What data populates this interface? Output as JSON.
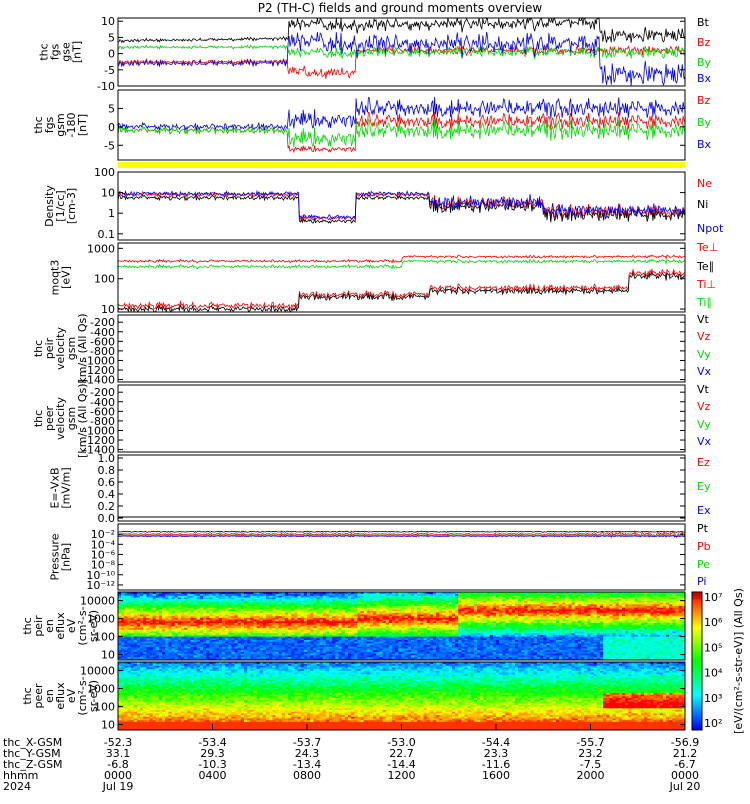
{
  "page": {
    "title": "P2 (TH-C) fields and ground moments overview"
  },
  "colors": {
    "black": "#000000",
    "red": "#ff0000",
    "green": "#00dd00",
    "blue": "#0000ff",
    "yellow": "#ffff00"
  },
  "chart_data": [
    {
      "id": "fgs",
      "type": "line",
      "ylabel_lines": [
        "thc",
        "fgs",
        "gse",
        "[nT]"
      ],
      "ylim": [
        -10,
        11
      ],
      "ticks": [
        -10,
        -5,
        0,
        5,
        10
      ],
      "tick_labels": [
        "-10",
        "-5",
        "0",
        "5",
        "10"
      ],
      "series": [
        {
          "name": "Bt",
          "color": "#000000"
        },
        {
          "name": "Bz",
          "color": "#ff0000"
        },
        {
          "name": "By",
          "color": "#00dd00"
        },
        {
          "name": "Bx",
          "color": "#0000ff"
        }
      ]
    },
    {
      "id": "fgs_gsm",
      "type": "line",
      "ylabel_lines": [
        "thc",
        "fgs",
        "gsm",
        "-180",
        "[nT]"
      ],
      "ylim": [
        -9,
        10
      ],
      "ticks": [
        -5,
        0,
        5
      ],
      "tick_labels": [
        "-5",
        "0",
        "5"
      ],
      "series": [
        {
          "name": "Bz",
          "color": "#ff0000"
        },
        {
          "name": "By",
          "color": "#00dd00"
        },
        {
          "name": "Bx",
          "color": "#0000ff"
        }
      ]
    },
    {
      "id": "density",
      "type": "line",
      "ylabel_lines": [
        "Density",
        "[1/cc]",
        "[cm-3]"
      ],
      "log": true,
      "ylim": [
        0.05,
        100
      ],
      "ticks": [
        0.1,
        1,
        10,
        100
      ],
      "tick_labels": [
        "0.1",
        "1",
        "10",
        "100"
      ],
      "series": [
        {
          "name": "Ne",
          "color": "#ff0000"
        },
        {
          "name": "Ni",
          "color": "#000000"
        },
        {
          "name": "Npot",
          "color": "#0000ff"
        }
      ]
    },
    {
      "id": "temp",
      "type": "line",
      "ylabel_lines": [
        "moqt3",
        "[eV]"
      ],
      "log": true,
      "ylim": [
        8,
        1500
      ],
      "ticks": [
        10,
        100,
        1000
      ],
      "tick_labels": [
        "10",
        "100",
        "1000"
      ],
      "series": [
        {
          "name": "Te⊥",
          "color": "#ff0000"
        },
        {
          "name": "Te∥",
          "color": "#000000"
        },
        {
          "name": "Ti⊥",
          "color": "#ff0000"
        },
        {
          "name": "Ti∥",
          "color": "#00dd00"
        }
      ]
    },
    {
      "id": "peir_vel",
      "type": "line",
      "ylabel_lines": [
        "thc",
        "peir",
        "velocity",
        "gsm",
        "km/s (All Qs)"
      ],
      "ylim": [
        -1450,
        -50
      ],
      "ticks": [
        -200,
        -400,
        -600,
        -800,
        -1000,
        -1200,
        -1400
      ],
      "tick_labels": [
        "-200",
        "-400",
        "-600",
        "-800",
        "-1000",
        "-1200",
        "-1400"
      ],
      "series": [
        {
          "name": "Vt",
          "color": "#000000"
        },
        {
          "name": "Vz",
          "color": "#ff0000"
        },
        {
          "name": "Vy",
          "color": "#00dd00"
        },
        {
          "name": "Vx",
          "color": "#0000ff"
        }
      ]
    },
    {
      "id": "peer_vel",
      "type": "line",
      "ylabel_lines": [
        "thc",
        "peer",
        "velocity",
        "gsm",
        "[km/s (All Qs)]"
      ],
      "ylim": [
        -1450,
        -50
      ],
      "ticks": [
        -200,
        -400,
        -600,
        -800,
        -1000,
        -1200,
        -1400
      ],
      "tick_labels": [
        "-200",
        "-400",
        "-600",
        "-800",
        "-1000",
        "-1200",
        "-1400"
      ],
      "series": [
        {
          "name": "Vt",
          "color": "#000000"
        },
        {
          "name": "Vz",
          "color": "#ff0000"
        },
        {
          "name": "Vy",
          "color": "#00dd00"
        },
        {
          "name": "Vx",
          "color": "#0000ff"
        }
      ]
    },
    {
      "id": "efield",
      "type": "line",
      "ylabel_lines": [
        "E=-VxB",
        "[mV/m]"
      ],
      "ylim": [
        -0.05,
        1.05
      ],
      "ticks": [
        0,
        0.2,
        0.4,
        0.6,
        0.8,
        1.0
      ],
      "tick_labels": [
        "0.0",
        "0.2",
        "0.4",
        "0.6",
        "0.8",
        "1.0"
      ],
      "series": [
        {
          "name": "Ez",
          "color": "#ff0000"
        },
        {
          "name": "Ey",
          "color": "#00dd00"
        },
        {
          "name": "Ex",
          "color": "#0000ff"
        }
      ]
    },
    {
      "id": "pressure",
      "type": "line",
      "ylabel_lines": [
        "Pressure",
        "[nPa]"
      ],
      "log": true,
      "ylim": [
        1e-13,
        1
      ],
      "ticks": [
        0.01,
        0.0001,
        1e-06,
        1e-08,
        1e-10,
        1e-12
      ],
      "tick_labels": [
        "10⁻²",
        "10⁻⁴",
        "10⁻⁶",
        "10⁻⁸",
        "10⁻¹⁰",
        "10⁻¹²"
      ],
      "series": [
        {
          "name": "Pt",
          "color": "#000000"
        },
        {
          "name": "Pb",
          "color": "#ff0000"
        },
        {
          "name": "Pe",
          "color": "#00dd00"
        },
        {
          "name": "Pi",
          "color": "#0000ff"
        }
      ]
    },
    {
      "id": "peir_en",
      "type": "heatmap",
      "ylabel_lines": [
        "thc",
        "peir",
        "en",
        "eflux",
        "eV",
        "(cm²-s-",
        "sr-eV)"
      ],
      "log": true,
      "ylim": [
        5,
        30000
      ],
      "ticks": [
        10,
        100,
        1000,
        10000
      ],
      "tick_labels": [
        "10",
        "100",
        "1000",
        "10000"
      ]
    },
    {
      "id": "peer_en",
      "type": "heatmap",
      "ylabel_lines": [
        "thc",
        "peer",
        "en",
        "eflux",
        "eV",
        "(cm²-s-",
        "sr-eV)"
      ],
      "log": true,
      "ylim": [
        5,
        30000
      ],
      "ticks": [
        10,
        100,
        1000,
        10000
      ],
      "tick_labels": [
        "10",
        "100",
        "1000",
        "10000"
      ]
    }
  ],
  "colorbar": {
    "label": "[eV/(cm²-s-str-eV)] (All Qs)",
    "tick_labels": [
      "10⁷",
      "10⁶",
      "10⁵",
      "10⁴",
      "10³",
      "10²"
    ]
  },
  "x_axis": {
    "ticks": [
      {
        "x": "-52.3",
        "y": "33.1",
        "z": "-6.8",
        "hhmm": "0000",
        "date": "Jul 19"
      },
      {
        "x": "-53.4",
        "y": "29.3",
        "z": "-10.3",
        "hhmm": "0400",
        "date": ""
      },
      {
        "x": "-53.7",
        "y": "24.3",
        "z": "-13.4",
        "hhmm": "0800",
        "date": ""
      },
      {
        "x": "-53.0",
        "y": "22.7",
        "z": "-14.4",
        "hhmm": "1200",
        "date": ""
      },
      {
        "x": "-54.4",
        "y": "23.3",
        "z": "-11.6",
        "hhmm": "1600",
        "date": ""
      },
      {
        "x": "-55.7",
        "y": "23.2",
        "z": "-7.5",
        "hhmm": "2000",
        "date": ""
      },
      {
        "x": "-56.9",
        "y": "21.2",
        "z": "-6.7",
        "hhmm": "0000",
        "date": "Jul 20"
      }
    ],
    "row_labels": [
      "thc_X-GSM",
      "thc_Y-GSM",
      "thc_Z-GSM",
      "hhmm",
      "2024"
    ]
  }
}
